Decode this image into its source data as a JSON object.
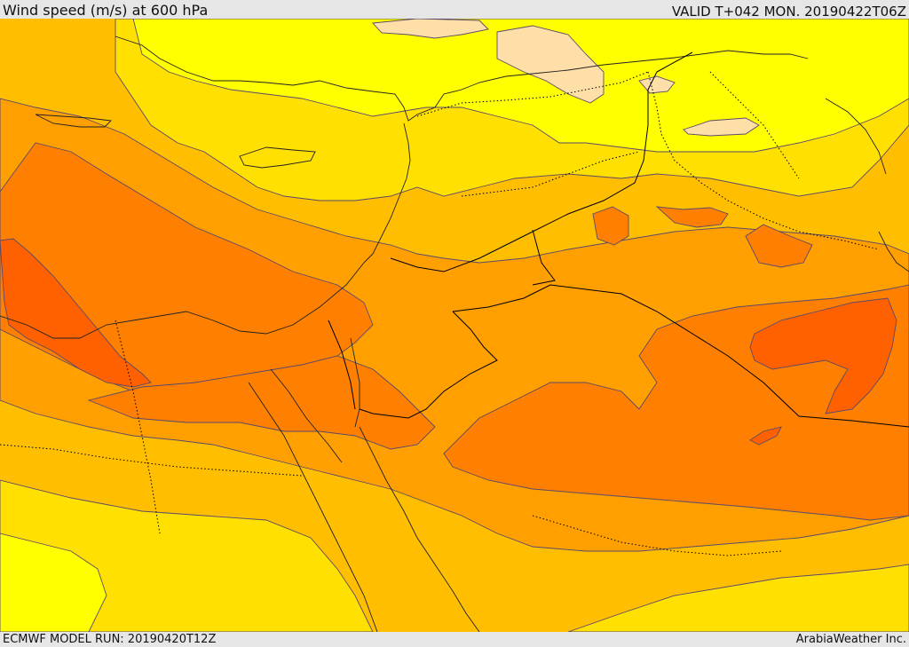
{
  "header": {
    "title": "Wind speed (m/s) at 600 hPa",
    "valid": "VALID T+042 MON. 20190422T06Z"
  },
  "footer": {
    "model_run": "ECMWF MODEL RUN: 20190420T12Z",
    "credit": "ArabiaWeather Inc."
  },
  "map": {
    "field": "wind speed 600 hPa",
    "region": "Eastern Mediterranean and Middle East",
    "colors": {
      "band_pale": "#ffdfa8",
      "band_1": "#ffff00",
      "band_2": "#ffe000",
      "band_3": "#ffbe00",
      "band_4": "#ff9f00",
      "band_5": "#ff7f00",
      "band_6": "#ff6000",
      "contour": "#5a4a6a",
      "border": "#000000"
    }
  }
}
